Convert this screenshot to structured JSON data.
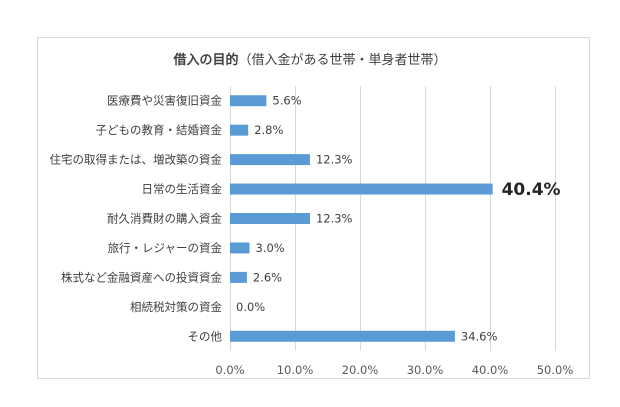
{
  "chart_data": {
    "type": "bar",
    "orientation": "horizontal",
    "title": "借入の目的",
    "subtitle": "（借入金がある世帯・単身者世帯）",
    "categories": [
      "医療費や災害復旧資金",
      "子どもの教育・結婚資金",
      "住宅の取得または、増改築の資金",
      "日常の生活資金",
      "耐久消費財の購入資金",
      "旅行・レジャーの資金",
      "株式など金融資産への投資資金",
      "相続税対策の資金",
      "その他"
    ],
    "values": [
      5.6,
      2.8,
      12.3,
      40.4,
      12.3,
      3.0,
      2.6,
      0.0,
      34.6
    ],
    "value_labels": [
      "5.6%",
      "2.8%",
      "12.3%",
      "40.4%",
      "12.3%",
      "3.0%",
      "2.6%",
      "0.0%",
      "34.6%"
    ],
    "highlighted_index": 3,
    "xlim": [
      0,
      50
    ],
    "xticks": [
      0,
      10,
      20,
      30,
      40,
      50
    ],
    "xtick_labels": [
      "0.0%",
      "10.0%",
      "20.0%",
      "30.0%",
      "40.0%",
      "50.0%"
    ],
    "grid": true,
    "legend": "none",
    "bar_color": "#5b9bd5",
    "grid_color": "#d9d9d9"
  }
}
